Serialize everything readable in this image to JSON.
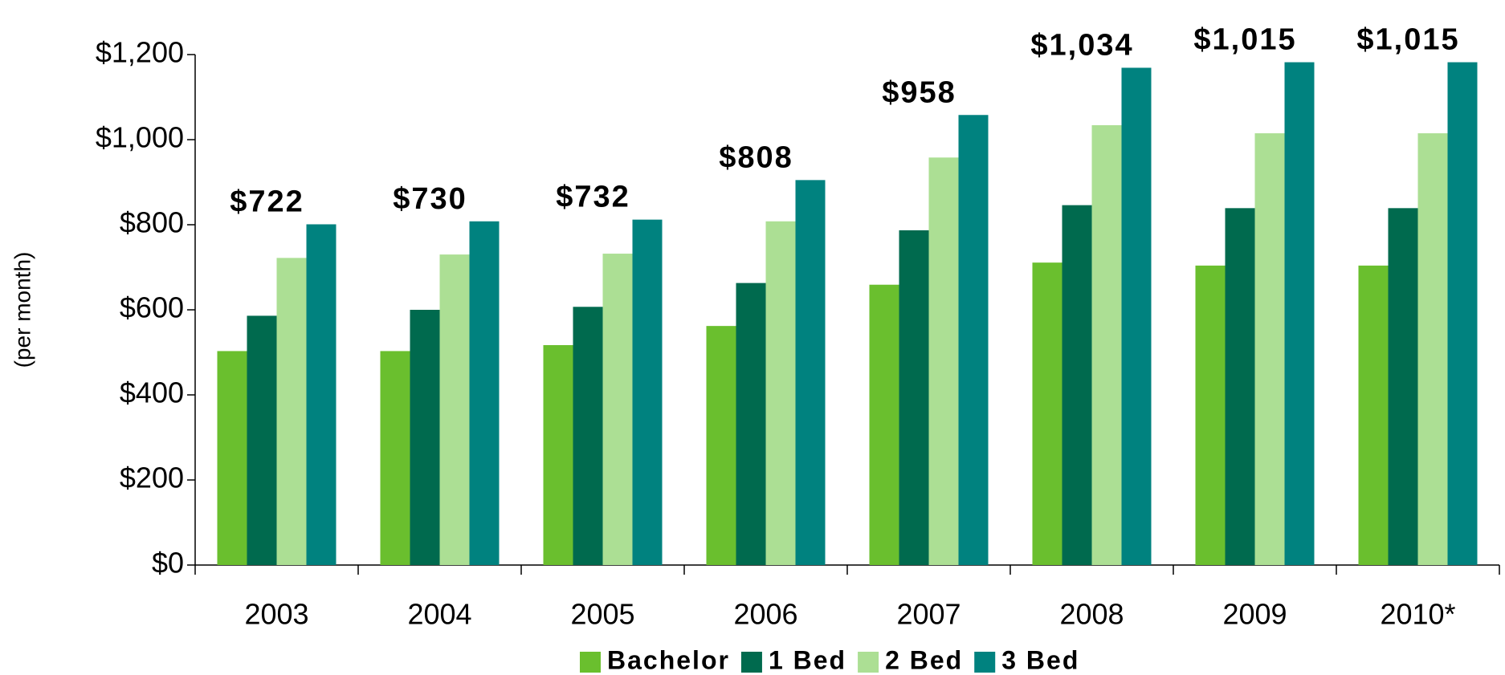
{
  "chart_data": {
    "type": "bar",
    "y_label": "(per month)",
    "categories": [
      "2003",
      "2004",
      "2005",
      "2006",
      "2007",
      "2008",
      "2009",
      "2010*"
    ],
    "series": [
      {
        "name": "Bachelor",
        "color": "#6abf2e",
        "values": [
          503,
          503,
          517,
          562,
          659,
          711,
          704,
          704
        ]
      },
      {
        "name": "1 Bed",
        "color": "#006a4e",
        "values": [
          586,
          600,
          607,
          663,
          787,
          846,
          839,
          839
        ]
      },
      {
        "name": "2 Bed",
        "color": "#acdf94",
        "values": [
          722,
          730,
          732,
          808,
          958,
          1034,
          1015,
          1015
        ],
        "value_labels": [
          "$722",
          "$730",
          "$732",
          "$808",
          "$958",
          "$1,034",
          "$1,015",
          "$1,015"
        ]
      },
      {
        "name": "3 Bed",
        "color": "#00827f",
        "values": [
          801,
          808,
          812,
          905,
          1058,
          1169,
          1182,
          1182
        ]
      }
    ],
    "ylim": [
      0,
      1200
    ],
    "yticks": [
      {
        "value": 0,
        "label": "$0"
      },
      {
        "value": 200,
        "label": "$200"
      },
      {
        "value": 400,
        "label": "$400"
      },
      {
        "value": 600,
        "label": "$600"
      },
      {
        "value": 800,
        "label": "$800"
      },
      {
        "value": 1000,
        "label": "$1,000"
      },
      {
        "value": 1200,
        "label": "$1,200"
      }
    ],
    "grid": false,
    "legend": "bottom"
  }
}
